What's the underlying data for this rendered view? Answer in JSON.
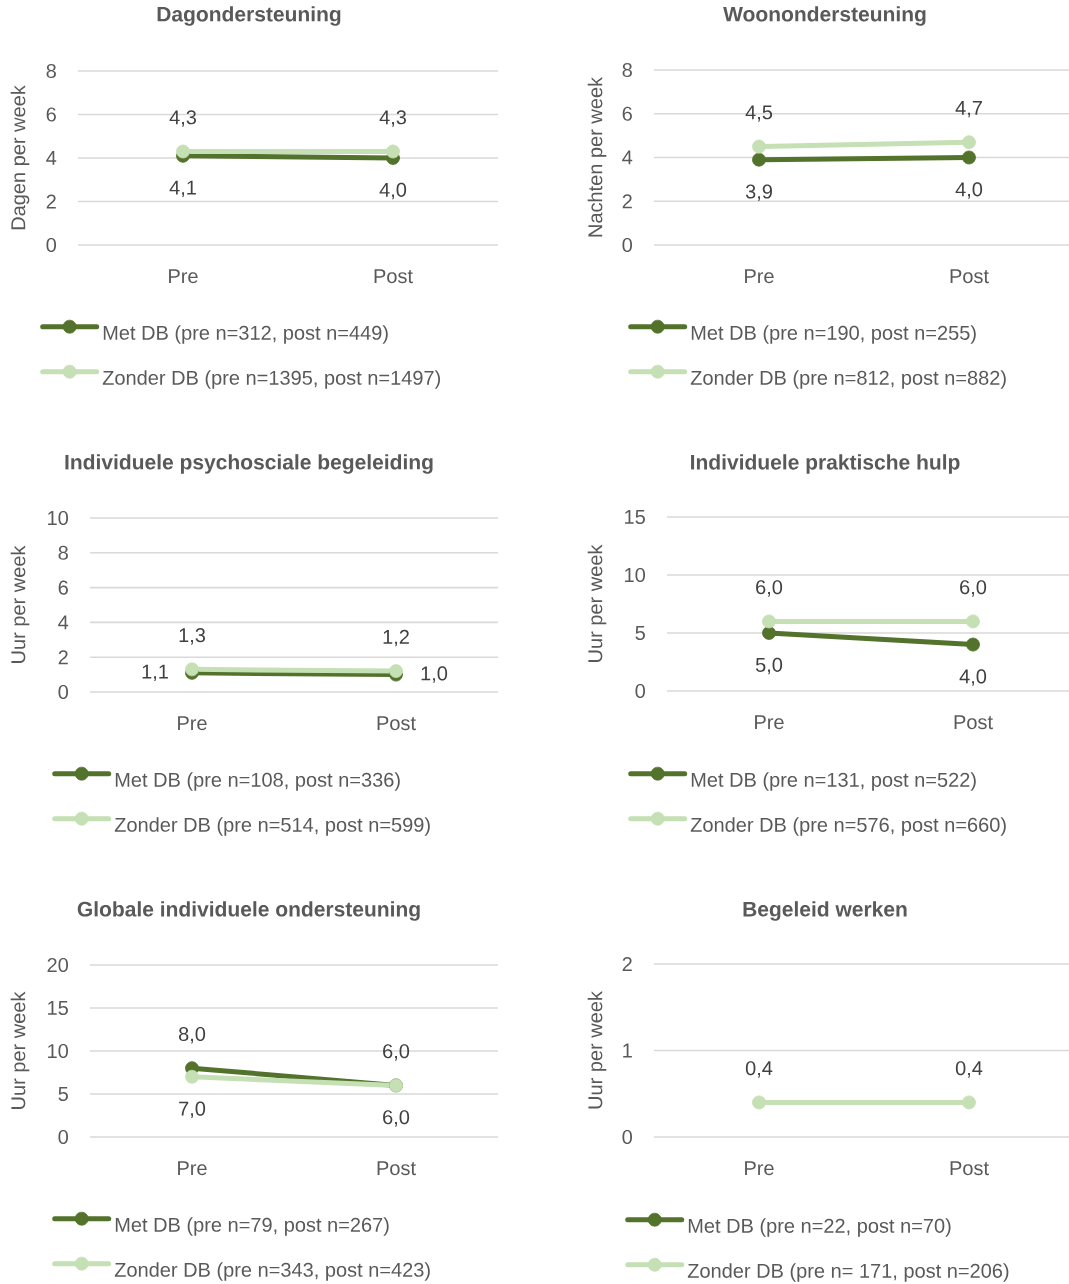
{
  "chart_data": [
    {
      "type": "line",
      "title": "Dagondersteuning",
      "ylabel": "Dagen per week",
      "categories": [
        "Pre",
        "Post"
      ],
      "series": [
        {
          "name": "Met DB (pre n=312, post n=449)",
          "color": "#53722b",
          "values": [
            4.1,
            4.0
          ],
          "value_labels": [
            "4,1",
            "4,0"
          ]
        },
        {
          "name": "Zonder DB (pre n=1395, post n=1497)",
          "color": "#c5e0b4",
          "values": [
            4.3,
            4.3
          ],
          "value_labels": [
            "4,3",
            "4,3"
          ]
        }
      ],
      "ylim": [
        0,
        8
      ],
      "yticks": [
        0,
        2,
        4,
        6,
        8
      ],
      "grid": "y",
      "legend": "bottom",
      "marker": "circle"
    },
    {
      "type": "line",
      "title": "Woonondersteuning",
      "ylabel": "Nachten per week",
      "categories": [
        "Pre",
        "Post"
      ],
      "series": [
        {
          "name": "Met DB (pre n=190, post n=255)",
          "color": "#53722b",
          "values": [
            3.9,
            4.0
          ],
          "value_labels": [
            "3,9",
            "4,0"
          ]
        },
        {
          "name": "Zonder DB (pre n=812, post n=882)",
          "color": "#c5e0b4",
          "values": [
            4.5,
            4.7
          ],
          "value_labels": [
            "4,5",
            "4,7"
          ]
        }
      ],
      "ylim": [
        0,
        8
      ],
      "yticks": [
        0,
        2,
        4,
        6,
        8
      ],
      "grid": "y",
      "legend": "bottom",
      "marker": "circle"
    },
    {
      "type": "line",
      "title": "Individuele psychosciale begeleiding",
      "ylabel": "Uur per week",
      "categories": [
        "Pre",
        "Post"
      ],
      "series": [
        {
          "name": "Met DB (pre n=108, post n=336)",
          "color": "#53722b",
          "values": [
            1.1,
            1.0
          ],
          "value_labels": [
            "1,1",
            "1,0"
          ]
        },
        {
          "name": "Zonder DB (pre n=514, post n=599)",
          "color": "#c5e0b4",
          "values": [
            1.3,
            1.2
          ],
          "value_labels": [
            "1,3",
            "1,2"
          ]
        }
      ],
      "ylim": [
        0,
        10
      ],
      "yticks": [
        0,
        2,
        4,
        6,
        8,
        10
      ],
      "grid": "y",
      "legend": "bottom",
      "marker": "circle"
    },
    {
      "type": "line",
      "title": "Individuele praktische hulp",
      "ylabel": "Uur per week",
      "categories": [
        "Pre",
        "Post"
      ],
      "series": [
        {
          "name": "Met DB (pre n=131, post n=522)",
          "color": "#53722b",
          "values": [
            5.0,
            4.0
          ],
          "value_labels": [
            "5,0",
            "4,0"
          ]
        },
        {
          "name": "Zonder DB (pre n=576, post n=660)",
          "color": "#c5e0b4",
          "values": [
            6.0,
            6.0
          ],
          "value_labels": [
            "6,0",
            "6,0"
          ]
        }
      ],
      "ylim": [
        0,
        15
      ],
      "yticks": [
        0,
        5,
        10,
        15
      ],
      "grid": "y",
      "legend": "bottom",
      "marker": "circle"
    },
    {
      "type": "line",
      "title": "Globale individuele ondersteuning",
      "ylabel": "Uur per week",
      "categories": [
        "Pre",
        "Post"
      ],
      "series": [
        {
          "name": "Met DB (pre n=79, post n=267)",
          "color": "#53722b",
          "values": [
            8.0,
            6.0
          ],
          "value_labels": [
            "8,0",
            "6,0"
          ]
        },
        {
          "name": "Zonder DB (pre n=343, post n=423)",
          "color": "#c5e0b4",
          "values": [
            7.0,
            6.0
          ],
          "value_labels": [
            "7,0",
            "6,0"
          ]
        }
      ],
      "ylim": [
        0,
        20
      ],
      "yticks": [
        0,
        5,
        10,
        15,
        20
      ],
      "grid": "y",
      "legend": "bottom",
      "marker": "circle"
    },
    {
      "type": "line",
      "title": "Begeleid werken",
      "ylabel": "Uur per week",
      "categories": [
        "Pre",
        "Post"
      ],
      "series": [
        {
          "name": "Met DB (pre n=22, post n=70)",
          "color": "#53722b",
          "values": [
            null,
            null
          ],
          "value_labels": [
            null,
            null
          ]
        },
        {
          "name": "Zonder DB (pre n= 171, post n=206)",
          "color": "#c5e0b4",
          "values": [
            0.4,
            0.4
          ],
          "value_labels": [
            "0,4",
            "0,4"
          ]
        }
      ],
      "ylim": [
        0,
        2
      ],
      "yticks": [
        0,
        1,
        2
      ],
      "grid": "y",
      "legend": "bottom",
      "marker": "circle"
    }
  ]
}
